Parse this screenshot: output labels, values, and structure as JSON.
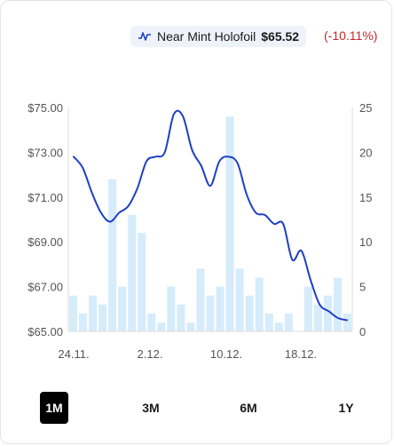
{
  "legend": {
    "series_label": "Near Mint Holofoil",
    "price": "$65.52",
    "change": "(-10.11%)",
    "line_color": "#1e3fc4",
    "bar_color": "#d6ecfb",
    "change_color": "#c62828",
    "icon": "line-chart-icon"
  },
  "ranges": {
    "options": [
      "1M",
      "3M",
      "6M",
      "1Y"
    ],
    "selected": "1M"
  },
  "chart_data": {
    "type": "line",
    "series": [
      {
        "name": "Near Mint Holofoil",
        "axis": "left",
        "values": [
          72.8,
          72.3,
          71.2,
          70.3,
          69.9,
          70.3,
          70.6,
          71.4,
          72.6,
          72.8,
          73.0,
          74.7,
          74.6,
          73.1,
          72.4,
          71.5,
          72.6,
          72.8,
          72.5,
          71.1,
          70.3,
          70.2,
          69.8,
          69.8,
          68.2,
          68.6,
          67.3,
          66.2,
          65.9,
          65.6,
          65.5
        ]
      },
      {
        "name": "",
        "type": "bar",
        "axis": "right",
        "values": [
          4,
          2,
          4,
          3,
          17,
          5,
          13,
          11,
          2,
          1,
          5,
          3,
          1,
          7,
          4,
          5,
          24,
          7,
          4,
          6,
          2,
          1,
          2,
          0,
          5,
          3,
          4,
          6,
          2
        ]
      }
    ],
    "x_tick_labels": [
      "24.11.",
      "2.12.",
      "10.12.",
      "18.12."
    ],
    "y_left": {
      "ylim": [
        65,
        75
      ],
      "tick_labels": [
        "$75.00",
        "$73.00",
        "$71.00",
        "$69.00",
        "$67.00",
        "$65.00"
      ]
    },
    "y_right": {
      "ylim": [
        0,
        25
      ],
      "tick_labels": [
        "25",
        "20",
        "15",
        "10",
        "5",
        "0"
      ]
    },
    "title": "",
    "xlabel": "",
    "ylabel": "",
    "grid": false
  }
}
